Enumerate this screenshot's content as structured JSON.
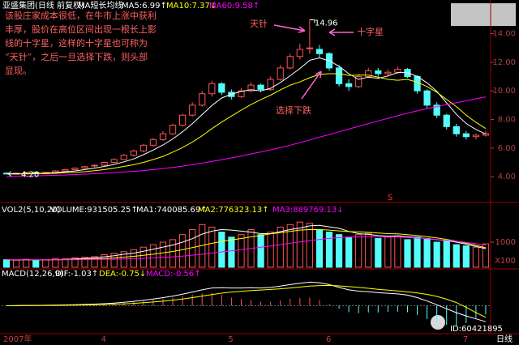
{
  "header": {
    "title": "亚盛集团(日线 前复权)",
    "indicator": "MA短长均线",
    "period": "日线",
    "watermark": "ID:60421895"
  },
  "chart_data": [
    {
      "type": "candlestick",
      "up_color": "#ff5454",
      "down_color": "#54fcfc",
      "axis_color": "#b04040",
      "categories": [
        "2007年",
        null,
        null,
        null,
        null,
        null,
        null,
        null,
        null,
        null,
        "4",
        null,
        null,
        null,
        null,
        null,
        null,
        null,
        null,
        null,
        null,
        null,
        null,
        "5",
        null,
        null,
        null,
        null,
        null,
        null,
        null,
        null,
        null,
        "6",
        null,
        null,
        null,
        null,
        null,
        null,
        null,
        null,
        null,
        null,
        null,
        null,
        null,
        "7",
        null,
        null
      ],
      "open": [
        4.25,
        4.2,
        4.25,
        4.3,
        4.2,
        4.3,
        4.4,
        4.5,
        4.6,
        4.75,
        4.8,
        5.0,
        5.2,
        5.5,
        5.8,
        6.2,
        6.6,
        7.0,
        7.6,
        8.3,
        9.0,
        9.8,
        10.5,
        9.9,
        9.6,
        10.0,
        10.4,
        10.1,
        10.8,
        11.6,
        12.4,
        12.95,
        12.9,
        12.6,
        11.6,
        10.5,
        10.3,
        11.0,
        11.4,
        11.2,
        11.3,
        11.5,
        11.0,
        10.0,
        9.0,
        8.3,
        7.5,
        7.0,
        6.8,
        6.9
      ],
      "high": [
        4.3,
        4.3,
        4.35,
        4.35,
        4.35,
        4.45,
        4.55,
        4.65,
        4.75,
        4.85,
        5.05,
        5.3,
        5.6,
        5.9,
        6.3,
        6.7,
        7.2,
        7.7,
        8.4,
        9.2,
        10.0,
        10.7,
        10.6,
        10.1,
        10.2,
        10.6,
        10.5,
        11.0,
        11.8,
        12.6,
        13.3,
        14.96,
        13.2,
        12.7,
        11.8,
        10.8,
        11.2,
        11.6,
        11.6,
        11.5,
        11.7,
        11.6,
        11.1,
        10.1,
        9.2,
        8.4,
        7.7,
        7.2,
        7.0,
        7.2
      ],
      "low": [
        4.2,
        4.2,
        4.22,
        4.2,
        4.2,
        4.25,
        4.35,
        4.45,
        4.55,
        4.65,
        4.75,
        4.95,
        5.15,
        5.4,
        5.7,
        6.1,
        6.5,
        6.9,
        7.5,
        8.2,
        8.9,
        9.6,
        9.7,
        9.4,
        9.5,
        9.9,
        9.9,
        10.0,
        10.7,
        11.5,
        12.2,
        12.6,
        12.3,
        11.4,
        10.3,
        10.0,
        10.2,
        10.9,
        11.0,
        11.0,
        11.2,
        10.9,
        9.8,
        8.8,
        8.1,
        7.3,
        6.8,
        6.6,
        6.6,
        6.8
      ],
      "close": [
        4.22,
        4.25,
        4.3,
        4.22,
        4.3,
        4.4,
        4.5,
        4.6,
        4.7,
        4.8,
        5.0,
        5.2,
        5.5,
        5.8,
        6.2,
        6.6,
        7.0,
        7.6,
        8.3,
        9.0,
        9.8,
        10.5,
        9.9,
        9.6,
        10.0,
        10.4,
        10.1,
        10.8,
        11.6,
        12.4,
        12.9,
        13.0,
        12.6,
        11.6,
        10.5,
        10.3,
        11.0,
        11.4,
        11.2,
        11.3,
        11.5,
        11.0,
        10.0,
        9.0,
        8.3,
        7.5,
        7.0,
        6.8,
        6.9,
        7.0
      ],
      "series": [
        {
          "name": "MA5:6.99↑",
          "color": "#ffffff",
          "values": [
            4.2,
            4.2,
            4.22,
            4.23,
            4.25,
            4.29,
            4.35,
            4.4,
            4.5,
            4.6,
            4.72,
            4.86,
            5.04,
            5.24,
            5.54,
            5.86,
            6.22,
            6.64,
            7.14,
            7.7,
            8.34,
            8.98,
            9.5,
            9.76,
            9.96,
            10.08,
            10.0,
            10.18,
            10.58,
            11.06,
            11.56,
            12.14,
            12.3,
            12.1,
            11.72,
            11.2,
            10.8,
            10.96,
            10.88,
            11.04,
            11.28,
            11.28,
            11.0,
            10.56,
            9.96,
            9.16,
            8.36,
            7.72,
            7.3,
            6.99
          ]
        },
        {
          "name": "MA10:7.37↓",
          "color": "#ffff00",
          "values": [
            4.2,
            4.2,
            4.2,
            4.21,
            4.22,
            4.24,
            4.27,
            4.3,
            4.35,
            4.42,
            4.5,
            4.6,
            4.72,
            4.84,
            5.0,
            5.2,
            5.42,
            5.72,
            6.04,
            6.42,
            6.86,
            7.36,
            7.82,
            8.24,
            8.66,
            9.04,
            9.38,
            9.7,
            10.06,
            10.4,
            10.62,
            10.92,
            11.14,
            11.2,
            11.2,
            11.08,
            11.1,
            11.1,
            10.96,
            10.8,
            10.74,
            10.8,
            10.6,
            10.3,
            9.9,
            9.4,
            8.9,
            8.3,
            7.8,
            7.37
          ]
        },
        {
          "name": "MA60:9.58↑",
          "color": "#ff00ff",
          "values": [
            4.0,
            4.02,
            4.04,
            4.06,
            4.08,
            4.1,
            4.12,
            4.15,
            4.18,
            4.21,
            4.25,
            4.29,
            4.33,
            4.38,
            4.43,
            4.5,
            4.57,
            4.65,
            4.74,
            4.84,
            4.95,
            5.07,
            5.19,
            5.32,
            5.45,
            5.59,
            5.73,
            5.88,
            6.03,
            6.2,
            6.38,
            6.57,
            6.76,
            6.95,
            7.14,
            7.33,
            7.52,
            7.71,
            7.9,
            8.08,
            8.26,
            8.44,
            8.6,
            8.76,
            8.9,
            9.04,
            9.17,
            9.3,
            9.45,
            9.58
          ]
        }
      ],
      "ylim": [
        2.2,
        15.5
      ],
      "yticks": [
        {
          "value": 4,
          "label": "4.00"
        },
        {
          "value": 6,
          "label": "6.00"
        },
        {
          "value": 8,
          "label": "8.00"
        },
        {
          "value": 10,
          "label": "10.00"
        },
        {
          "value": 12,
          "label": "12.00"
        },
        {
          "value": 14,
          "label": "14.00"
        }
      ],
      "min_label": {
        "value": 4.2,
        "label": "4.20"
      },
      "note_color": "#ff6060",
      "callout_color": "#ff66cc",
      "note_lines": [
        "该股庄家成本很低，在牛市上涨中获利",
        "丰厚，股价在高位区间出现一根长上影",
        "线的十字星，这样的十字星也可称为",
        "“天针”，之后一旦选择下跌，则头部",
        "显现。"
      ],
      "callouts": [
        "天针",
        "十字星",
        "选择下跌"
      ],
      "marker_text": "S"
    },
    {
      "type": "bar",
      "title": "VOL2(5,10,20)",
      "up_color": "#ff5454",
      "down_color": "#54fcfc",
      "unit_label": "X100",
      "series": [
        {
          "name": "VOLUME:931505.25↑",
          "color": "#ffffff",
          "kind": "bar",
          "values": [
            300,
            280,
            320,
            260,
            300,
            350,
            330,
            380,
            400,
            420,
            500,
            560,
            620,
            700,
            800,
            900,
            1000,
            1100,
            1300,
            1500,
            1700,
            1600,
            1400,
            1200,
            1300,
            1500,
            1300,
            1400,
            1600,
            1700,
            1800,
            1750,
            1500,
            1400,
            1300,
            1200,
            1300,
            1350,
            1150,
            1200,
            1250,
            1100,
            1200,
            1150,
            1000,
            1050,
            900,
            850,
            800,
            931
          ]
        },
        {
          "name": "MA1:740085.69↑",
          "color": "#ffffff",
          "values": [
            300,
            290,
            300,
            290,
            292,
            302,
            312,
            328,
            352,
            376,
            416,
            462,
            520,
            560,
            640,
            716,
            804,
            884,
            1000,
            1140,
            1320,
            1440,
            1500,
            1480,
            1440,
            1400,
            1340,
            1340,
            1420,
            1500,
            1560,
            1650,
            1670,
            1610,
            1550,
            1430,
            1340,
            1310,
            1260,
            1240,
            1250,
            1220,
            1180,
            1140,
            1100,
            1060,
            1000,
            920,
            830,
            740
          ]
        },
        {
          "name": "MA2:776323.13↑",
          "color": "#ffff00",
          "values": [
            300,
            295,
            297,
            292,
            292,
            296,
            302,
            310,
            318,
            328,
            346,
            372,
            402,
            436,
            474,
            520,
            572,
            628,
            700,
            782,
            868,
            956,
            1030,
            1088,
            1144,
            1210,
            1270,
            1330,
            1380,
            1430,
            1480,
            1500,
            1500,
            1480,
            1450,
            1420,
            1410,
            1390,
            1360,
            1340,
            1330,
            1300,
            1260,
            1220,
            1170,
            1110,
            1040,
            960,
            870,
            776
          ]
        },
        {
          "name": "MA3:889769.13↓",
          "color": "#ff00ff",
          "values": [
            300,
            300,
            300,
            298,
            297,
            297,
            298,
            300,
            303,
            306,
            312,
            320,
            330,
            342,
            356,
            372,
            392,
            416,
            446,
            480,
            520,
            566,
            612,
            656,
            700,
            746,
            796,
            846,
            900,
            956,
            1010,
            1060,
            1110,
            1150,
            1180,
            1200,
            1210,
            1215,
            1215,
            1210,
            1200,
            1185,
            1165,
            1140,
            1110,
            1075,
            1035,
            990,
            940,
            890
          ]
        }
      ],
      "ylim": [
        0,
        2000
      ],
      "yticks": [
        1000
      ]
    },
    {
      "type": "macd",
      "title": "MACD(12,26,9)",
      "up_color": "#ff5454",
      "down_color": "#54fcfc",
      "series": [
        {
          "name": "DIF:-1.03↑",
          "color": "#ffffff",
          "values": [
            0.0,
            0.01,
            0.02,
            0.02,
            0.03,
            0.04,
            0.05,
            0.06,
            0.08,
            0.1,
            0.13,
            0.17,
            0.22,
            0.28,
            0.35,
            0.43,
            0.52,
            0.62,
            0.74,
            0.88,
            1.02,
            1.14,
            1.16,
            1.14,
            1.14,
            1.16,
            1.14,
            1.18,
            1.26,
            1.36,
            1.45,
            1.52,
            1.48,
            1.36,
            1.18,
            1.02,
            0.94,
            0.9,
            0.84,
            0.8,
            0.76,
            0.68,
            0.52,
            0.3,
            0.06,
            -0.2,
            -0.45,
            -0.66,
            -0.85,
            -1.03
          ]
        },
        {
          "name": "DEA:-0.75↓",
          "color": "#ffff00",
          "values": [
            0.0,
            0.0,
            0.01,
            0.01,
            0.02,
            0.02,
            0.03,
            0.04,
            0.05,
            0.06,
            0.08,
            0.1,
            0.12,
            0.15,
            0.19,
            0.24,
            0.29,
            0.36,
            0.43,
            0.52,
            0.62,
            0.72,
            0.81,
            0.88,
            0.93,
            0.98,
            1.01,
            1.05,
            1.09,
            1.14,
            1.2,
            1.26,
            1.3,
            1.31,
            1.28,
            1.23,
            1.18,
            1.12,
            1.06,
            1.0,
            0.95,
            0.89,
            0.82,
            0.73,
            0.6,
            0.42,
            0.2,
            -0.1,
            -0.45,
            -0.75
          ]
        },
        {
          "name": "MACD:-0.56↑",
          "color": "#ff00ff",
          "kind": "bar",
          "values": [
            0,
            0.02,
            0.02,
            0.02,
            0.02,
            0.04,
            0.04,
            0.04,
            0.06,
            0.08,
            0.1,
            0.14,
            0.2,
            0.26,
            0.32,
            0.38,
            0.46,
            0.52,
            0.62,
            0.72,
            0.8,
            0.84,
            0.7,
            0.52,
            0.42,
            0.36,
            0.26,
            0.26,
            0.34,
            0.44,
            0.5,
            0.52,
            0.36,
            0.1,
            -0.2,
            -0.42,
            -0.48,
            -0.44,
            -0.44,
            -0.4,
            -0.38,
            -0.42,
            -0.6,
            -0.86,
            -1.08,
            -1.24,
            -1.3,
            -1.12,
            -0.8,
            -0.56
          ]
        }
      ],
      "ylim": [
        -1.7,
        1.8
      ]
    }
  ]
}
